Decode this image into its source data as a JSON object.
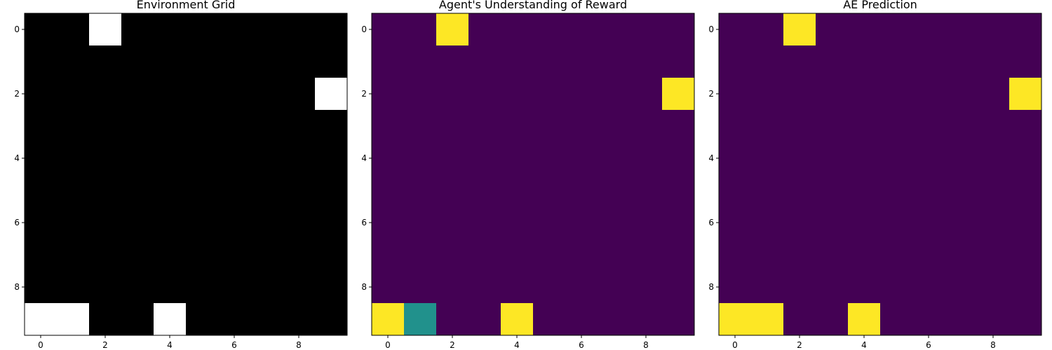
{
  "chart_data": [
    {
      "type": "heatmap",
      "title": "Environment Grid",
      "colormap": "gray",
      "xlim": [
        -0.5,
        9.5
      ],
      "ylim": [
        9.5,
        -0.5
      ],
      "xticks": [
        0,
        2,
        4,
        6,
        8
      ],
      "yticks": [
        0,
        2,
        4,
        6,
        8
      ],
      "grid": false,
      "values": [
        [
          0,
          0,
          1,
          0,
          0,
          0,
          0,
          0,
          0,
          0
        ],
        [
          0,
          0,
          0,
          0,
          0,
          0,
          0,
          0,
          0,
          0
        ],
        [
          0,
          0,
          0,
          0,
          0,
          0,
          0,
          0,
          0,
          1
        ],
        [
          0,
          0,
          0,
          0,
          0,
          0,
          0,
          0,
          0,
          0
        ],
        [
          0,
          0,
          0,
          0,
          0,
          0,
          0,
          0,
          0,
          0
        ],
        [
          0,
          0,
          0,
          0,
          0,
          0,
          0,
          0,
          0,
          0
        ],
        [
          0,
          0,
          0,
          0,
          0,
          0,
          0,
          0,
          0,
          0
        ],
        [
          0,
          0,
          0,
          0,
          0,
          0,
          0,
          0,
          0,
          0
        ],
        [
          0,
          0,
          0,
          0,
          0,
          0,
          0,
          0,
          0,
          0
        ],
        [
          1,
          1,
          0,
          0,
          1,
          0,
          0,
          0,
          0,
          0
        ]
      ]
    },
    {
      "type": "heatmap",
      "title": "Agent's Understanding of Reward",
      "colormap": "viridis",
      "xlim": [
        -0.5,
        9.5
      ],
      "ylim": [
        9.5,
        -0.5
      ],
      "xticks": [
        0,
        2,
        4,
        6,
        8
      ],
      "yticks": [
        0,
        2,
        4,
        6,
        8
      ],
      "grid": false,
      "values": [
        [
          0,
          0,
          1,
          0,
          0,
          0,
          0,
          0,
          0,
          0
        ],
        [
          0,
          0,
          0,
          0,
          0,
          0,
          0,
          0,
          0,
          0
        ],
        [
          0,
          0,
          0,
          0,
          0,
          0,
          0,
          0,
          0,
          1
        ],
        [
          0,
          0,
          0,
          0,
          0,
          0,
          0,
          0,
          0,
          0
        ],
        [
          0,
          0,
          0,
          0,
          0,
          0,
          0,
          0,
          0,
          0
        ],
        [
          0,
          0,
          0,
          0,
          0,
          0,
          0,
          0,
          0,
          0
        ],
        [
          0,
          0,
          0,
          0,
          0,
          0,
          0,
          0,
          0,
          0
        ],
        [
          0,
          0,
          0,
          0,
          0,
          0,
          0,
          0,
          0,
          0
        ],
        [
          0,
          0,
          0,
          0,
          0,
          0,
          0,
          0,
          0,
          0
        ],
        [
          1,
          0.5,
          0,
          0,
          1,
          0,
          0,
          0,
          0,
          0
        ]
      ]
    },
    {
      "type": "heatmap",
      "title": "AE Prediction",
      "colormap": "viridis",
      "xlim": [
        -0.5,
        9.5
      ],
      "ylim": [
        9.5,
        -0.5
      ],
      "xticks": [
        0,
        2,
        4,
        6,
        8
      ],
      "yticks": [
        0,
        2,
        4,
        6,
        8
      ],
      "grid": false,
      "values": [
        [
          0,
          0,
          1,
          0,
          0,
          0,
          0,
          0,
          0,
          0
        ],
        [
          0,
          0,
          0,
          0,
          0,
          0,
          0,
          0,
          0,
          0
        ],
        [
          0,
          0,
          0,
          0,
          0,
          0,
          0,
          0,
          0,
          1
        ],
        [
          0,
          0,
          0,
          0,
          0,
          0,
          0,
          0,
          0,
          0
        ],
        [
          0,
          0,
          0,
          0,
          0,
          0,
          0,
          0,
          0,
          0
        ],
        [
          0,
          0,
          0,
          0,
          0,
          0,
          0,
          0,
          0,
          0
        ],
        [
          0,
          0,
          0,
          0,
          0,
          0,
          0,
          0,
          0,
          0
        ],
        [
          0,
          0,
          0,
          0,
          0,
          0,
          0,
          0,
          0,
          0
        ],
        [
          0,
          0,
          0,
          0,
          0,
          0,
          0,
          0,
          0,
          0
        ],
        [
          1,
          1,
          0,
          0,
          1,
          0,
          0,
          0,
          0,
          0
        ]
      ]
    }
  ]
}
